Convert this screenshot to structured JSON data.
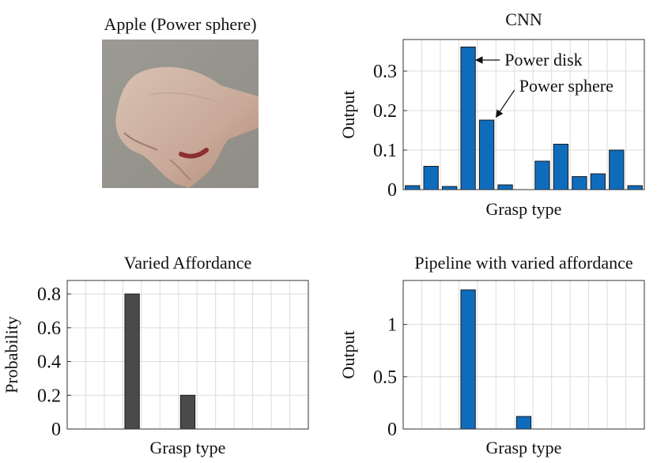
{
  "image_panel": {
    "title": "Apple (Power sphere)"
  },
  "colors": {
    "blue": "#0f6cbd",
    "dark": "#4a4a4a",
    "grid": "#dcdcdc"
  },
  "chart_data": [
    {
      "id": "cnn",
      "type": "bar",
      "title": "CNN",
      "xlabel": "Grasp type",
      "ylabel": "Output",
      "ylim": [
        0,
        0.38
      ],
      "yticks": [
        0,
        0.1,
        0.2,
        0.3
      ],
      "ytick_labels": [
        "0",
        "0.1",
        "0.2",
        "0.3"
      ],
      "grid": true,
      "color": "#0f6cbd",
      "values": [
        0.01,
        0.059,
        0.008,
        0.361,
        0.176,
        0.012,
        0.0,
        0.072,
        0.115,
        0.033,
        0.04,
        0.1,
        0.01
      ],
      "annotations": [
        {
          "text": "Power disk",
          "bar_index": 3
        },
        {
          "text": "Power sphere",
          "bar_index": 4
        }
      ]
    },
    {
      "id": "varied",
      "type": "bar",
      "title": "Varied Affordance",
      "xlabel": "Grasp type",
      "ylabel": "Probability",
      "ylim": [
        0,
        0.88
      ],
      "yticks": [
        0,
        0.2,
        0.4,
        0.6,
        0.8
      ],
      "ytick_labels": [
        "0",
        "0.2",
        "0.4",
        "0.6",
        "0.8"
      ],
      "grid": true,
      "color": "#4a4a4a",
      "values": [
        0,
        0,
        0,
        0.8,
        0,
        0,
        0.2,
        0,
        0,
        0,
        0,
        0,
        0
      ]
    },
    {
      "id": "pipeline",
      "type": "bar",
      "title": "Pipeline with varied affordance",
      "xlabel": "Grasp type",
      "ylabel": "Output",
      "ylim": [
        0,
        1.42
      ],
      "yticks": [
        0,
        0.5,
        1
      ],
      "ytick_labels": [
        "0",
        "0.5",
        "1"
      ],
      "grid": true,
      "color": "#0f6cbd",
      "values": [
        0,
        0,
        0,
        1.33,
        0,
        0,
        0.12,
        0,
        0,
        0,
        0,
        0,
        0
      ]
    }
  ]
}
